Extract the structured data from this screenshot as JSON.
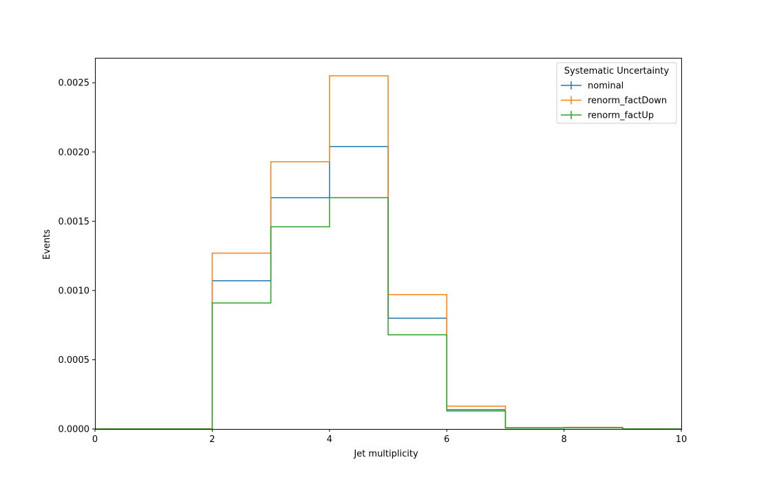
{
  "chart_data": {
    "type": "line",
    "drawstyle": "steps",
    "xlabel": "Jet multiplicity",
    "ylabel": "Events",
    "xlim": [
      0,
      10
    ],
    "ylim": [
      0,
      0.00268
    ],
    "xticks": [
      "0",
      "2",
      "4",
      "6",
      "8",
      "10"
    ],
    "yticks": [
      "0.0000",
      "0.0005",
      "0.0010",
      "0.0015",
      "0.0020",
      "0.0025"
    ],
    "bin_edges": [
      0,
      1,
      2,
      3,
      4,
      5,
      6,
      7,
      8,
      9,
      10
    ],
    "grid": false,
    "legend": {
      "title": "Systematic Uncertainty",
      "placement": "top-right"
    },
    "series": [
      {
        "name": "nominal",
        "color": "#1f77b4",
        "values": [
          0,
          0,
          0.00107,
          0.00167,
          0.00204,
          0.0008,
          0.00014,
          8e-06,
          1e-05,
          0
        ]
      },
      {
        "name": "renorm_factDown",
        "color": "#ff7f0e",
        "values": [
          0,
          0,
          0.00127,
          0.00193,
          0.00255,
          0.00097,
          0.000165,
          1e-05,
          1.2e-05,
          0
        ]
      },
      {
        "name": "renorm_factUp",
        "color": "#2ca02c",
        "values": [
          0,
          0,
          0.00091,
          0.00146,
          0.00167,
          0.00068,
          0.00013,
          7e-06,
          9e-06,
          0
        ]
      }
    ]
  }
}
